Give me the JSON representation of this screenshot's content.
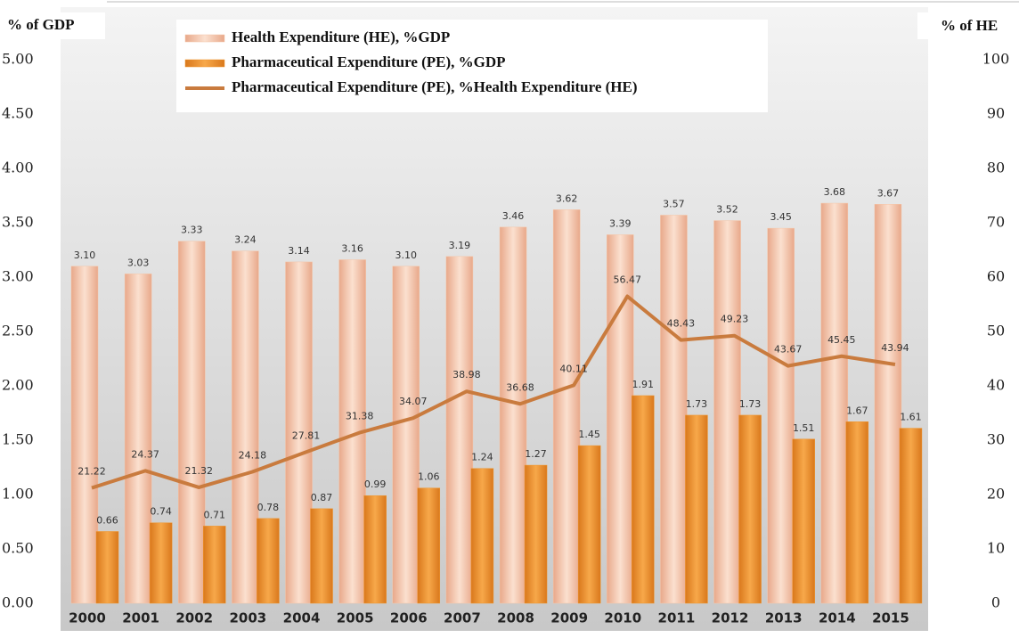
{
  "chart_data": {
    "type": "bar-line",
    "ylabel": "% of GDP",
    "y2label": "% of HE",
    "categories": [
      "2000",
      "2001",
      "2002",
      "2003",
      "2004",
      "2005",
      "2006",
      "2007",
      "2008",
      "2009",
      "2010",
      "2011",
      "2012",
      "2013",
      "2014",
      "2015"
    ],
    "ylim": [
      0,
      5
    ],
    "yticks": [
      {
        "value": 0,
        "label": "0.00"
      },
      {
        "value": 0.5,
        "label": "0.50"
      },
      {
        "value": 1,
        "label": "1.00"
      },
      {
        "value": 1.5,
        "label": "1.50"
      },
      {
        "value": 2,
        "label": "2.00"
      },
      {
        "value": 2.5,
        "label": "2.50"
      },
      {
        "value": 3,
        "label": "3.00"
      },
      {
        "value": 3.5,
        "label": "3.50"
      },
      {
        "value": 4,
        "label": "4.00"
      },
      {
        "value": 4.5,
        "label": "4.50"
      },
      {
        "value": 5,
        "label": "5.00"
      }
    ],
    "y2lim": [
      0,
      100
    ],
    "y2ticks": [
      0,
      10,
      20,
      30,
      40,
      50,
      60,
      70,
      80,
      90,
      100
    ],
    "series": [
      {
        "name": "Health Expenditure (HE), %GDP",
        "type": "bar",
        "color": "#f5c6a8",
        "values": [
          3.1,
          3.03,
          3.33,
          3.24,
          3.14,
          3.16,
          3.1,
          3.19,
          3.46,
          3.62,
          3.39,
          3.57,
          3.52,
          3.45,
          3.68,
          3.67
        ],
        "value_labels": [
          "3.10",
          "3.03",
          "3.33",
          "3.24",
          "3.14",
          "3.16",
          "3.10",
          "3.19",
          "3.46",
          "3.62",
          "3.39",
          "3.57",
          "3.52",
          "3.45",
          "3.68",
          "3.67"
        ]
      },
      {
        "name": "Pharmaceutical Expenditure (PE), %GDP",
        "type": "bar",
        "color": "#f0962e",
        "values": [
          0.66,
          0.74,
          0.71,
          0.78,
          0.87,
          0.99,
          1.06,
          1.24,
          1.27,
          1.45,
          1.91,
          1.73,
          1.73,
          1.51,
          1.67,
          1.61
        ],
        "value_labels": [
          "0.66",
          "0.74",
          "0.71",
          "0.78",
          "0.87",
          "0.99",
          "1.06",
          "1.24",
          "1.27",
          "1.45",
          "1.91",
          "1.73",
          "1.73",
          "1.51",
          "1.67",
          "1.61"
        ]
      },
      {
        "name": "Pharmaceutical Expenditure (PE), %Health Expenditure (HE)",
        "type": "line",
        "axis": "y2",
        "color": "#c97b3e",
        "values": [
          21.22,
          24.37,
          21.32,
          24.18,
          27.81,
          31.38,
          34.07,
          38.98,
          36.68,
          40.11,
          56.47,
          48.43,
          49.23,
          43.67,
          45.45,
          43.94
        ]
      }
    ]
  }
}
